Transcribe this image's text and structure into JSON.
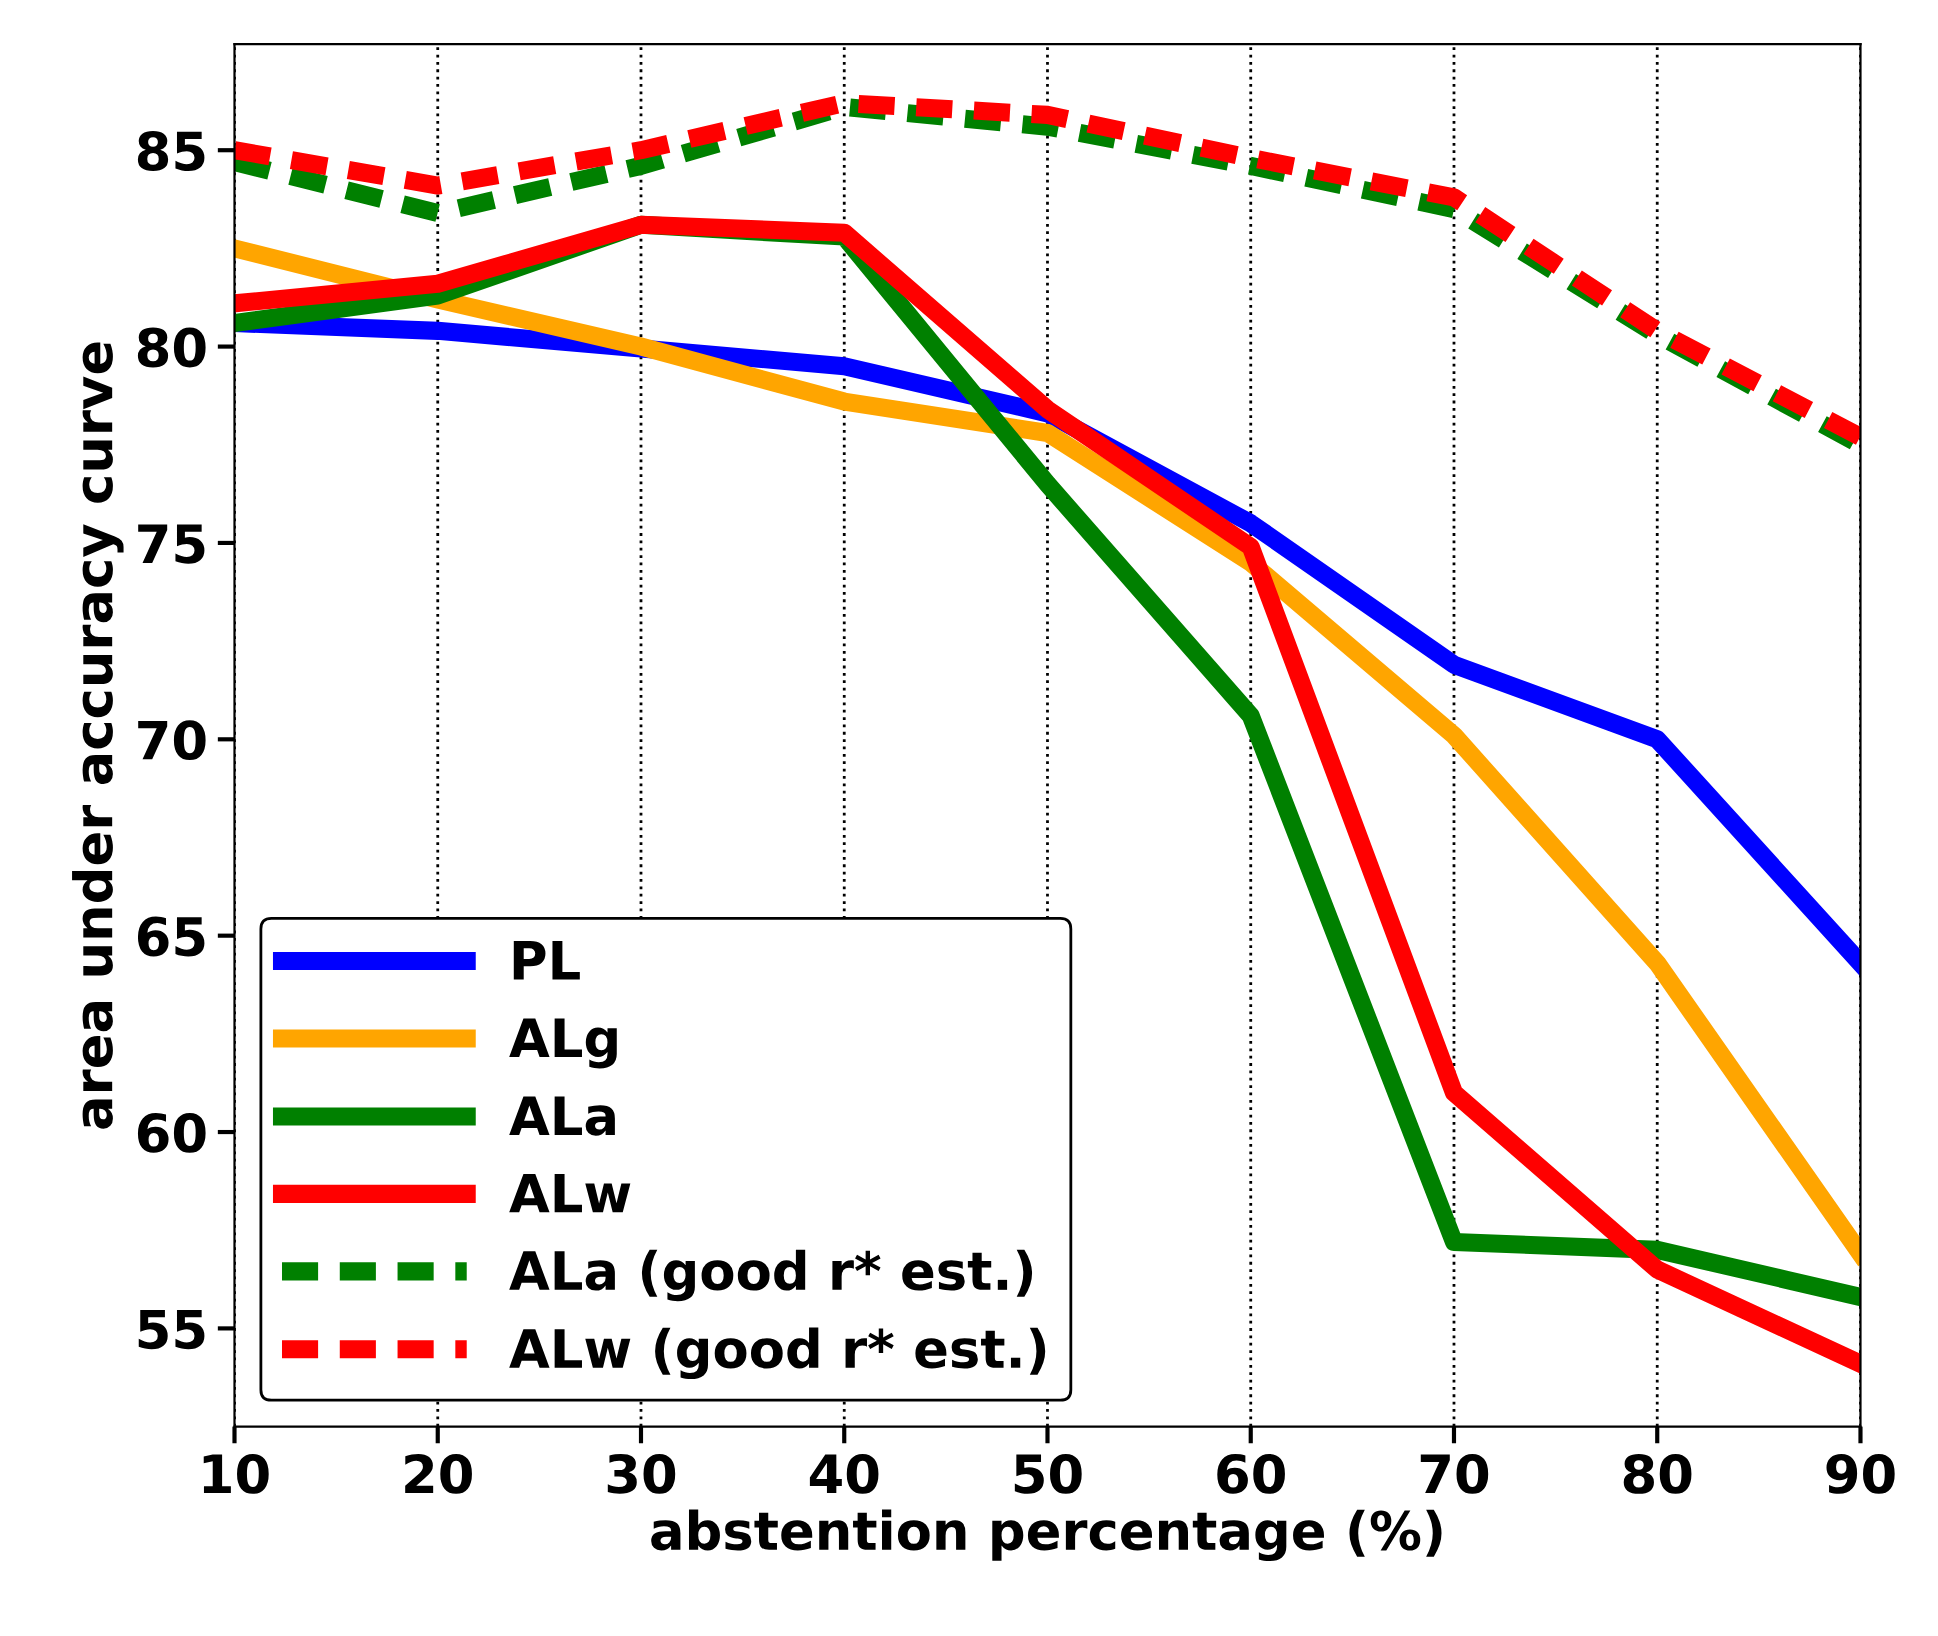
{
  "chart_data": {
    "type": "line",
    "xlabel": "abstention percentage (%)",
    "ylabel": "area under accuracy curve",
    "x": [
      10,
      20,
      30,
      40,
      50,
      60,
      70,
      80,
      90
    ],
    "series": [
      {
        "name": "PL",
        "color": "#0000ff",
        "line_style": "solid",
        "values": [
          80.6,
          80.4,
          79.95,
          79.5,
          78.3,
          75.5,
          71.9,
          70.0,
          64.3
        ]
      },
      {
        "name": "ALg",
        "color": "#ffa500",
        "line_style": "solid",
        "values": [
          82.5,
          81.2,
          80.0,
          78.6,
          77.8,
          74.5,
          70.1,
          64.3,
          56.9
        ]
      },
      {
        "name": "ALa",
        "color": "#008000",
        "line_style": "solid",
        "values": [
          80.6,
          81.3,
          83.1,
          82.8,
          76.5,
          70.6,
          57.2,
          57.0,
          55.8
        ]
      },
      {
        "name": "ALw",
        "color": "#ff0000",
        "line_style": "solid",
        "values": [
          81.1,
          81.6,
          83.1,
          82.9,
          78.4,
          74.9,
          61.0,
          56.5,
          54.1
        ]
      },
      {
        "name": "ALa (good r* est.)",
        "color": "#008000",
        "line_style": "dashed",
        "values": [
          84.7,
          83.4,
          84.6,
          86.1,
          85.6,
          84.6,
          83.5,
          80.3,
          77.5
        ]
      },
      {
        "name": "ALw (good r* est.)",
        "color": "#ff0000",
        "line_style": "dashed",
        "values": [
          85.0,
          84.1,
          85.0,
          86.2,
          85.9,
          84.8,
          83.8,
          80.4,
          77.7
        ]
      }
    ],
    "xlim": [
      10,
      90
    ],
    "ylim": [
      52.5,
      87.7
    ],
    "xticks": [
      10,
      20,
      30,
      40,
      50,
      60,
      70,
      80,
      90
    ],
    "yticks": [
      55,
      60,
      65,
      70,
      75,
      80,
      85
    ],
    "grid": "x",
    "legend": "bottom left",
    "marker": "none"
  }
}
